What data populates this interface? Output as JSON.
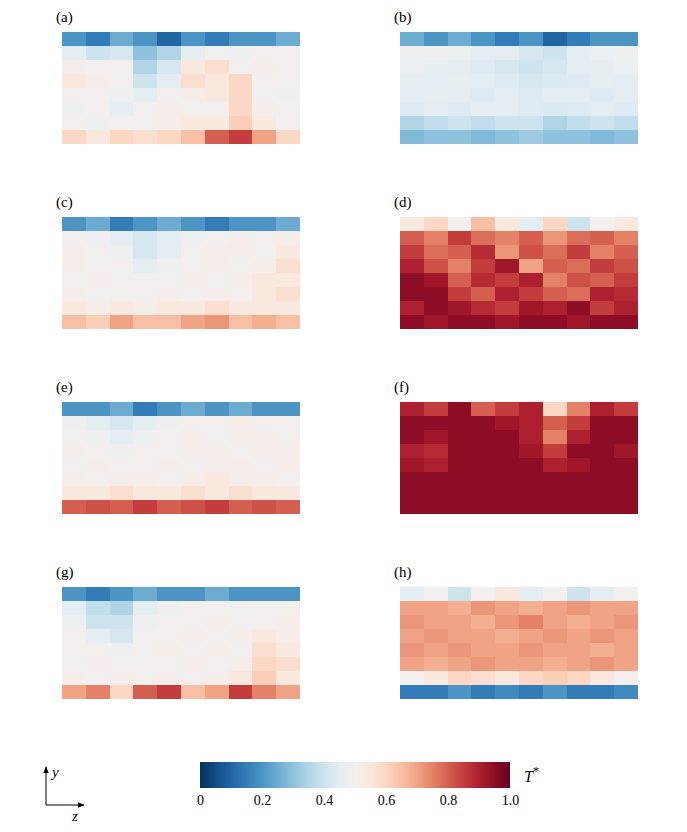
{
  "chart_data": {
    "type": "heatmap",
    "panels": [
      {
        "label": "(a)",
        "cells": [
          [
            0.2,
            0.15,
            0.25,
            0.2,
            0.1,
            0.2,
            0.15,
            0.2,
            0.2,
            0.25
          ],
          [
            0.45,
            0.4,
            0.42,
            0.3,
            0.35,
            0.45,
            0.5,
            0.48,
            0.5,
            0.5
          ],
          [
            0.52,
            0.5,
            0.5,
            0.35,
            0.42,
            0.55,
            0.58,
            0.5,
            0.52,
            0.5
          ],
          [
            0.55,
            0.52,
            0.5,
            0.4,
            0.45,
            0.58,
            0.55,
            0.6,
            0.5,
            0.5
          ],
          [
            0.5,
            0.5,
            0.48,
            0.45,
            0.5,
            0.52,
            0.55,
            0.6,
            0.5,
            0.48
          ],
          [
            0.48,
            0.5,
            0.45,
            0.5,
            0.52,
            0.5,
            0.5,
            0.6,
            0.52,
            0.5
          ],
          [
            0.5,
            0.48,
            0.5,
            0.5,
            0.52,
            0.55,
            0.55,
            0.62,
            0.55,
            0.5
          ],
          [
            0.6,
            0.55,
            0.6,
            0.58,
            0.6,
            0.65,
            0.8,
            0.85,
            0.7,
            0.6
          ]
        ]
      },
      {
        "label": "(b)",
        "cells": [
          [
            0.25,
            0.2,
            0.25,
            0.2,
            0.15,
            0.2,
            0.1,
            0.15,
            0.2,
            0.2
          ],
          [
            0.48,
            0.48,
            0.47,
            0.45,
            0.45,
            0.42,
            0.4,
            0.45,
            0.47,
            0.48
          ],
          [
            0.47,
            0.46,
            0.45,
            0.44,
            0.42,
            0.4,
            0.42,
            0.45,
            0.46,
            0.47
          ],
          [
            0.46,
            0.45,
            0.46,
            0.45,
            0.44,
            0.42,
            0.43,
            0.44,
            0.46,
            0.45
          ],
          [
            0.45,
            0.46,
            0.45,
            0.44,
            0.45,
            0.44,
            0.45,
            0.45,
            0.44,
            0.45
          ],
          [
            0.44,
            0.45,
            0.44,
            0.45,
            0.45,
            0.44,
            0.43,
            0.44,
            0.45,
            0.44
          ],
          [
            0.35,
            0.38,
            0.4,
            0.38,
            0.4,
            0.4,
            0.35,
            0.38,
            0.4,
            0.38
          ],
          [
            0.28,
            0.3,
            0.3,
            0.28,
            0.3,
            0.32,
            0.3,
            0.3,
            0.28,
            0.3
          ]
        ]
      },
      {
        "label": "(c)",
        "cells": [
          [
            0.2,
            0.25,
            0.15,
            0.2,
            0.25,
            0.2,
            0.15,
            0.2,
            0.2,
            0.25
          ],
          [
            0.5,
            0.48,
            0.45,
            0.42,
            0.45,
            0.48,
            0.5,
            0.52,
            0.5,
            0.52
          ],
          [
            0.52,
            0.5,
            0.48,
            0.42,
            0.45,
            0.5,
            0.52,
            0.52,
            0.5,
            0.55
          ],
          [
            0.52,
            0.5,
            0.5,
            0.45,
            0.48,
            0.5,
            0.52,
            0.5,
            0.52,
            0.58
          ],
          [
            0.5,
            0.52,
            0.5,
            0.5,
            0.5,
            0.52,
            0.5,
            0.52,
            0.55,
            0.55
          ],
          [
            0.52,
            0.5,
            0.5,
            0.5,
            0.52,
            0.5,
            0.52,
            0.5,
            0.55,
            0.58
          ],
          [
            0.55,
            0.52,
            0.55,
            0.52,
            0.55,
            0.55,
            0.58,
            0.55,
            0.55,
            0.55
          ],
          [
            0.65,
            0.62,
            0.7,
            0.65,
            0.65,
            0.7,
            0.72,
            0.65,
            0.68,
            0.65
          ]
        ]
      },
      {
        "label": "(d)",
        "cells": [
          [
            0.55,
            0.6,
            0.5,
            0.65,
            0.55,
            0.45,
            0.6,
            0.4,
            0.5,
            0.55
          ],
          [
            0.8,
            0.75,
            0.85,
            0.78,
            0.75,
            0.8,
            0.72,
            0.78,
            0.8,
            0.75
          ],
          [
            0.85,
            0.78,
            0.8,
            0.88,
            0.72,
            0.82,
            0.78,
            0.85,
            0.75,
            0.8
          ],
          [
            0.9,
            0.82,
            0.75,
            0.85,
            0.92,
            0.7,
            0.8,
            0.78,
            0.85,
            0.82
          ],
          [
            0.95,
            0.92,
            0.8,
            0.88,
            0.85,
            0.9,
            0.75,
            0.82,
            0.8,
            0.85
          ],
          [
            0.95,
            0.95,
            0.85,
            0.8,
            0.9,
            0.85,
            0.8,
            0.78,
            0.9,
            0.88
          ],
          [
            0.9,
            0.95,
            0.92,
            0.88,
            0.85,
            0.92,
            0.9,
            0.95,
            0.85,
            0.9
          ],
          [
            0.95,
            0.92,
            0.95,
            0.95,
            0.92,
            0.95,
            0.95,
            0.92,
            0.95,
            0.95
          ]
        ]
      },
      {
        "label": "(e)",
        "cells": [
          [
            0.2,
            0.2,
            0.25,
            0.15,
            0.2,
            0.25,
            0.2,
            0.25,
            0.2,
            0.2
          ],
          [
            0.48,
            0.45,
            0.42,
            0.45,
            0.48,
            0.5,
            0.5,
            0.52,
            0.5,
            0.5
          ],
          [
            0.5,
            0.48,
            0.45,
            0.48,
            0.5,
            0.52,
            0.5,
            0.52,
            0.52,
            0.5
          ],
          [
            0.52,
            0.5,
            0.48,
            0.5,
            0.5,
            0.52,
            0.52,
            0.5,
            0.52,
            0.52
          ],
          [
            0.5,
            0.52,
            0.5,
            0.5,
            0.52,
            0.5,
            0.52,
            0.52,
            0.5,
            0.52
          ],
          [
            0.52,
            0.5,
            0.52,
            0.52,
            0.5,
            0.52,
            0.55,
            0.52,
            0.52,
            0.5
          ],
          [
            0.55,
            0.55,
            0.58,
            0.55,
            0.55,
            0.58,
            0.55,
            0.58,
            0.55,
            0.55
          ],
          [
            0.8,
            0.82,
            0.8,
            0.85,
            0.8,
            0.82,
            0.85,
            0.8,
            0.82,
            0.8
          ]
        ]
      },
      {
        "label": "(f)",
        "cells": [
          [
            0.9,
            0.85,
            0.95,
            0.8,
            0.85,
            0.9,
            0.6,
            0.75,
            0.9,
            0.85
          ],
          [
            0.95,
            0.95,
            0.95,
            0.95,
            0.92,
            0.9,
            0.8,
            0.85,
            0.95,
            0.95
          ],
          [
            0.95,
            0.92,
            0.95,
            0.95,
            0.95,
            0.9,
            0.75,
            0.9,
            0.95,
            0.95
          ],
          [
            0.9,
            0.88,
            0.95,
            0.95,
            0.95,
            0.92,
            0.85,
            0.95,
            0.95,
            0.92
          ],
          [
            0.92,
            0.9,
            0.95,
            0.95,
            0.95,
            0.95,
            0.9,
            0.92,
            0.95,
            0.95
          ],
          [
            0.95,
            0.95,
            0.95,
            0.95,
            0.95,
            0.95,
            0.95,
            0.95,
            0.95,
            0.95
          ],
          [
            0.95,
            0.95,
            0.95,
            0.95,
            0.95,
            0.95,
            0.95,
            0.95,
            0.95,
            0.95
          ],
          [
            0.95,
            0.95,
            0.95,
            0.95,
            0.95,
            0.95,
            0.95,
            0.95,
            0.95,
            0.95
          ]
        ]
      },
      {
        "label": "(g)",
        "cells": [
          [
            0.2,
            0.15,
            0.2,
            0.25,
            0.2,
            0.2,
            0.25,
            0.2,
            0.2,
            0.2
          ],
          [
            0.45,
            0.38,
            0.35,
            0.45,
            0.48,
            0.5,
            0.5,
            0.5,
            0.5,
            0.5
          ],
          [
            0.48,
            0.4,
            0.4,
            0.48,
            0.5,
            0.5,
            0.52,
            0.5,
            0.5,
            0.52
          ],
          [
            0.5,
            0.45,
            0.42,
            0.5,
            0.5,
            0.52,
            0.5,
            0.52,
            0.55,
            0.52
          ],
          [
            0.5,
            0.5,
            0.48,
            0.5,
            0.52,
            0.5,
            0.52,
            0.5,
            0.58,
            0.55
          ],
          [
            0.5,
            0.52,
            0.5,
            0.5,
            0.5,
            0.52,
            0.5,
            0.52,
            0.6,
            0.58
          ],
          [
            0.52,
            0.5,
            0.52,
            0.5,
            0.52,
            0.5,
            0.52,
            0.55,
            0.62,
            0.55
          ],
          [
            0.7,
            0.75,
            0.6,
            0.8,
            0.85,
            0.65,
            0.7,
            0.85,
            0.75,
            0.7
          ]
        ]
      },
      {
        "label": "(h)",
        "cells": [
          [
            0.45,
            0.5,
            0.4,
            0.5,
            0.55,
            0.45,
            0.5,
            0.4,
            0.45,
            0.5
          ],
          [
            0.7,
            0.7,
            0.68,
            0.72,
            0.7,
            0.68,
            0.7,
            0.72,
            0.7,
            0.7
          ],
          [
            0.72,
            0.7,
            0.7,
            0.68,
            0.72,
            0.75,
            0.7,
            0.68,
            0.7,
            0.72
          ],
          [
            0.7,
            0.72,
            0.7,
            0.7,
            0.68,
            0.7,
            0.72,
            0.7,
            0.72,
            0.7
          ],
          [
            0.72,
            0.7,
            0.72,
            0.7,
            0.7,
            0.72,
            0.7,
            0.7,
            0.68,
            0.7
          ],
          [
            0.7,
            0.68,
            0.7,
            0.72,
            0.7,
            0.7,
            0.68,
            0.7,
            0.72,
            0.7
          ],
          [
            0.5,
            0.55,
            0.6,
            0.58,
            0.55,
            0.6,
            0.62,
            0.6,
            0.55,
            0.5
          ],
          [
            0.15,
            0.15,
            0.2,
            0.15,
            0.18,
            0.15,
            0.2,
            0.15,
            0.15,
            0.18
          ]
        ]
      }
    ],
    "colorbar": {
      "title": "T*",
      "range": [
        0,
        1
      ],
      "ticks": [
        0,
        0.2,
        0.4,
        0.6,
        0.8,
        {
          "value": 1,
          "label": "1.0"
        }
      ]
    },
    "axis_labels": {
      "y": "y",
      "z": "z"
    }
  }
}
